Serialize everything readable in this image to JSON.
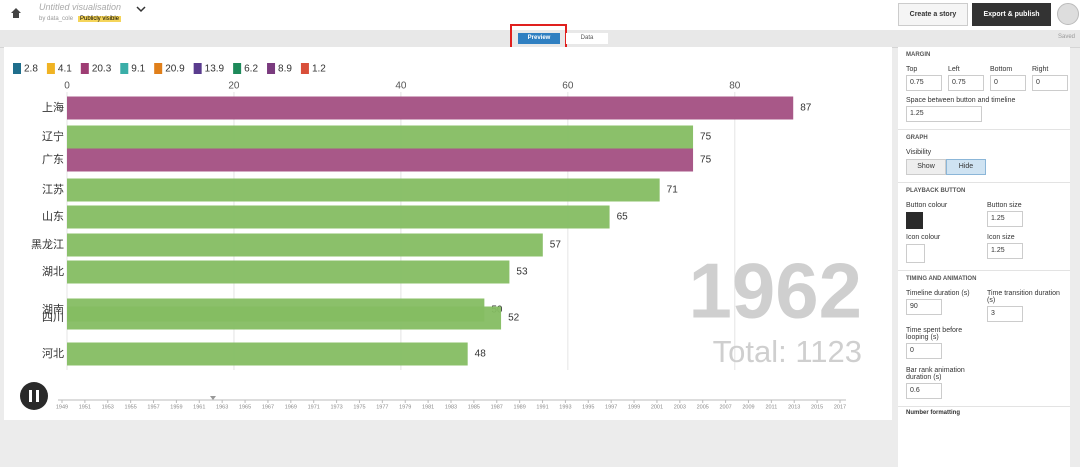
{
  "header": {
    "title": "Untitled visualisation",
    "author": "by data_cole",
    "visibility": "Publicly visible",
    "story_button": "Create a story",
    "export_button": "Export & publish"
  },
  "toolbar": {
    "preview": "Preview",
    "data": "Data",
    "status": "Saved"
  },
  "chart_data": {
    "type": "bar",
    "orientation": "horizontal",
    "legend": [
      {
        "name": "2.8",
        "color": "#1f6e8c"
      },
      {
        "name": "4.1",
        "color": "#f0b323"
      },
      {
        "name": "20.3",
        "color": "#9e3d74"
      },
      {
        "name": "9.1",
        "color": "#3aaea8"
      },
      {
        "name": "20.9",
        "color": "#e07f1a"
      },
      {
        "name": "13.9",
        "color": "#5a3c8e"
      },
      {
        "name": "6.2",
        "color": "#1e8a5a"
      },
      {
        "name": "8.9",
        "color": "#7a3b7e"
      },
      {
        "name": "1.2",
        "color": "#d94f3a"
      }
    ],
    "categories": [
      "上海",
      "辽宁",
      "广东",
      "江苏",
      "山东",
      "黑龙江",
      "湖北",
      "湖南",
      "四川",
      "河北"
    ],
    "values": [
      87,
      75,
      75,
      71,
      65,
      57,
      53,
      50,
      52,
      48
    ],
    "colors": [
      "#a34f82",
      "#85bd62",
      "#a34f82",
      "#85bd62",
      "#85bd62",
      "#85bd62",
      "#85bd62",
      "#85bd62",
      "#85bd62",
      "#85bd62"
    ],
    "xlim": [
      0,
      95
    ],
    "xticks": [
      0,
      20,
      40,
      60,
      80
    ],
    "grid": true,
    "year_label": "1962",
    "total_label": "Total: 1123",
    "timeline": {
      "labels": [
        "1949",
        "1951",
        "1953",
        "1955",
        "1957",
        "1959",
        "1961",
        "1963",
        "1965",
        "1967",
        "1969",
        "1971",
        "1973",
        "1975",
        "1977",
        "1979",
        "1981",
        "1983",
        "1985",
        "1987",
        "1989",
        "1991",
        "1993",
        "1995",
        "1997",
        "1999",
        "2001",
        "2003",
        "2005",
        "2007",
        "2009",
        "2011",
        "2013",
        "2015",
        "2017"
      ]
    }
  },
  "settings": {
    "margin": {
      "heading": "MARGIN",
      "top": "Top",
      "left": "Left",
      "bottom": "Bottom",
      "right": "Right",
      "top_value": "0.75",
      "left_value": "0.75",
      "bottom_value": "0",
      "right_value": "0",
      "space_label": "Space between button and timeline",
      "space_value": "1.25"
    },
    "graph": {
      "heading": "GRAPH",
      "visibility": "Visibility",
      "show": "Show",
      "hide": "Hide"
    },
    "playback": {
      "heading": "PLAYBACK BUTTON",
      "button_colour": "Button colour",
      "button_size": "Button size",
      "button_size_value": "1.25",
      "icon_colour": "Icon colour",
      "icon_size": "Icon size",
      "icon_size_value": "1.25"
    },
    "timing": {
      "heading": "TIMING AND ANIMATION",
      "timeline_duration": "Timeline duration (s)",
      "timeline_duration_value": "90",
      "transition": "Time transition duration (s)",
      "transition_value": "3",
      "looping": "Time spent before looping (s)",
      "looping_value": "0",
      "rank": "Bar rank animation duration (s)",
      "rank_value": "0.6"
    },
    "number_formatting": "Number formatting"
  }
}
